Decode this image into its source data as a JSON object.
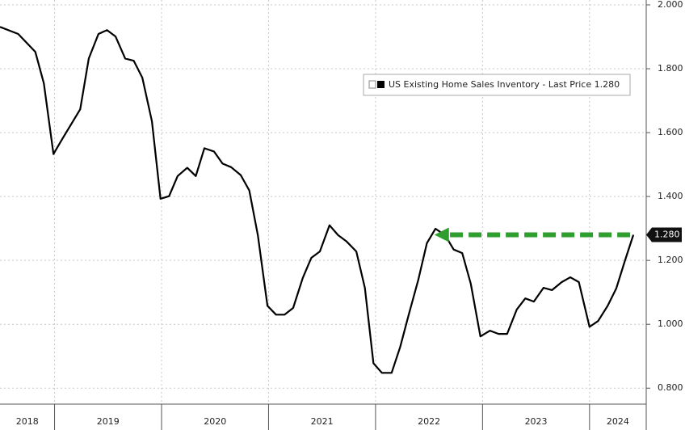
{
  "chart_data": {
    "type": "line",
    "x": [
      2018.49,
      2018.66,
      2018.82,
      2018.9,
      2018.99,
      2019.07,
      2019.24,
      2019.32,
      2019.41,
      2019.49,
      2019.57,
      2019.66,
      2019.74,
      2019.82,
      2019.91,
      2019.99,
      2020.07,
      2020.15,
      2020.24,
      2020.32,
      2020.4,
      2020.49,
      2020.57,
      2020.65,
      2020.74,
      2020.82,
      2020.9,
      2020.99,
      2021.07,
      2021.15,
      2021.23,
      2021.32,
      2021.4,
      2021.48,
      2021.57,
      2021.65,
      2021.73,
      2021.82,
      2021.9,
      2021.98,
      2022.06,
      2022.15,
      2022.23,
      2022.31,
      2022.4,
      2022.48,
      2022.56,
      2022.65,
      2022.73,
      2022.81,
      2022.89,
      2022.98,
      2023.07,
      2023.15,
      2023.23,
      2023.32,
      2023.4,
      2023.48,
      2023.57,
      2023.65,
      2023.74,
      2023.82,
      2023.9,
      2024.0,
      2024.08,
      2024.17,
      2024.25,
      2024.33,
      2024.41
    ],
    "series": [
      {
        "name": "US Existing Home Sales Inventory - Last Price 1.280",
        "color": "#000000",
        "values": [
          1.931,
          1.909,
          1.853,
          1.754,
          1.533,
          1.579,
          1.673,
          1.832,
          1.909,
          1.921,
          1.901,
          1.832,
          1.825,
          1.772,
          1.635,
          1.393,
          1.401,
          1.464,
          1.49,
          1.464,
          1.551,
          1.541,
          1.503,
          1.492,
          1.467,
          1.419,
          1.279,
          1.058,
          1.03,
          1.03,
          1.051,
          1.145,
          1.208,
          1.228,
          1.31,
          1.279,
          1.259,
          1.228,
          1.114,
          0.878,
          0.848,
          0.848,
          0.929,
          1.03,
          1.14,
          1.254,
          1.299,
          1.279,
          1.234,
          1.223,
          1.127,
          0.962,
          0.98,
          0.97,
          0.97,
          1.046,
          1.081,
          1.071,
          1.114,
          1.107,
          1.132,
          1.147,
          1.132,
          0.992,
          1.01,
          1.058,
          1.112,
          1.198,
          1.28
        ]
      }
    ],
    "last_price": {
      "value": 1.28,
      "label": "1.280"
    },
    "arrow": {
      "y": 1.28,
      "x_from": 2024.41,
      "x_to": 2022.55,
      "color": "#2e9e2e"
    },
    "xlim": [
      2018.49,
      2024.53
    ],
    "xticks": [
      2019,
      2020,
      2021,
      2022,
      2023,
      2024
    ],
    "x_labels": [
      "2018",
      "2019",
      "2020",
      "2021",
      "2022",
      "2023",
      "2024"
    ],
    "ylim": [
      0.75,
      2.0
    ],
    "yticks": [
      {
        "value": 0.8,
        "label": "0.800"
      },
      {
        "value": 1.0,
        "label": "1.000"
      },
      {
        "value": 1.2,
        "label": "1.200"
      },
      {
        "value": 1.4,
        "label": "1.400"
      },
      {
        "value": 1.6,
        "label": "1.600"
      },
      {
        "value": 1.8,
        "label": "1.800"
      },
      {
        "value": 2.0,
        "label": "2.000"
      }
    ],
    "grid": true
  }
}
